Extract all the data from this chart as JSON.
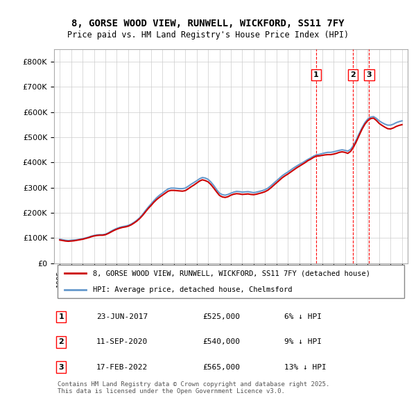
{
  "title": "8, GORSE WOOD VIEW, RUNWELL, WICKFORD, SS11 7FY",
  "subtitle": "Price paid vs. HM Land Registry's House Price Index (HPI)",
  "legend_label_red": "8, GORSE WOOD VIEW, RUNWELL, WICKFORD, SS11 7FY (detached house)",
  "legend_label_blue": "HPI: Average price, detached house, Chelmsford",
  "transactions": [
    {
      "num": 1,
      "date": "23-JUN-2017",
      "price": 525000,
      "pct": "6%",
      "dir": "↓",
      "x_year": 2017.48
    },
    {
      "num": 2,
      "date": "11-SEP-2020",
      "price": 540000,
      "pct": "9%",
      "dir": "↓",
      "x_year": 2020.7
    },
    {
      "num": 3,
      "date": "17-FEB-2022",
      "price": 565000,
      "pct": "13%",
      "dir": "↓",
      "x_year": 2022.12
    }
  ],
  "footer": "Contains HM Land Registry data © Crown copyright and database right 2025.\nThis data is licensed under the Open Government Licence v3.0.",
  "ylim": [
    0,
    850000
  ],
  "xlim": [
    1994.5,
    2025.5
  ],
  "yticks": [
    0,
    100000,
    200000,
    300000,
    400000,
    500000,
    600000,
    700000,
    800000
  ],
  "ytick_labels": [
    "£0",
    "£100K",
    "£200K",
    "£300K",
    "£400K",
    "£500K",
    "£600K",
    "£700K",
    "£800K"
  ],
  "color_red": "#cc0000",
  "color_blue": "#6699cc",
  "color_grid": "#cccccc",
  "bg_color": "#ffffff",
  "hpi_data": {
    "years": [
      1995.0,
      1995.25,
      1995.5,
      1995.75,
      1996.0,
      1996.25,
      1996.5,
      1996.75,
      1997.0,
      1997.25,
      1997.5,
      1997.75,
      1998.0,
      1998.25,
      1998.5,
      1998.75,
      1999.0,
      1999.25,
      1999.5,
      1999.75,
      2000.0,
      2000.25,
      2000.5,
      2000.75,
      2001.0,
      2001.25,
      2001.5,
      2001.75,
      2002.0,
      2002.25,
      2002.5,
      2002.75,
      2003.0,
      2003.25,
      2003.5,
      2003.75,
      2004.0,
      2004.25,
      2004.5,
      2004.75,
      2005.0,
      2005.25,
      2005.5,
      2005.75,
      2006.0,
      2006.25,
      2006.5,
      2006.75,
      2007.0,
      2007.25,
      2007.5,
      2007.75,
      2008.0,
      2008.25,
      2008.5,
      2008.75,
      2009.0,
      2009.25,
      2009.5,
      2009.75,
      2010.0,
      2010.25,
      2010.5,
      2010.75,
      2011.0,
      2011.25,
      2011.5,
      2011.75,
      2012.0,
      2012.25,
      2012.5,
      2012.75,
      2013.0,
      2013.25,
      2013.5,
      2013.75,
      2014.0,
      2014.25,
      2014.5,
      2014.75,
      2015.0,
      2015.25,
      2015.5,
      2015.75,
      2016.0,
      2016.25,
      2016.5,
      2016.75,
      2017.0,
      2017.25,
      2017.5,
      2017.75,
      2018.0,
      2018.25,
      2018.5,
      2018.75,
      2019.0,
      2019.25,
      2019.5,
      2019.75,
      2020.0,
      2020.25,
      2020.5,
      2020.75,
      2021.0,
      2021.25,
      2021.5,
      2021.75,
      2022.0,
      2022.25,
      2022.5,
      2022.75,
      2023.0,
      2023.25,
      2023.5,
      2023.75,
      2024.0,
      2024.25,
      2024.5,
      2024.75,
      2025.0
    ],
    "values": [
      95000,
      93000,
      91000,
      90000,
      91000,
      92000,
      93000,
      95000,
      97000,
      100000,
      103000,
      107000,
      110000,
      112000,
      113000,
      113000,
      115000,
      120000,
      127000,
      133000,
      138000,
      142000,
      145000,
      147000,
      150000,
      155000,
      162000,
      170000,
      180000,
      193000,
      208000,
      222000,
      235000,
      248000,
      260000,
      270000,
      278000,
      287000,
      295000,
      298000,
      298000,
      297000,
      296000,
      296000,
      298000,
      305000,
      313000,
      320000,
      327000,
      335000,
      340000,
      338000,
      333000,
      322000,
      308000,
      292000,
      278000,
      272000,
      270000,
      273000,
      278000,
      282000,
      285000,
      284000,
      282000,
      283000,
      284000,
      282000,
      280000,
      282000,
      285000,
      288000,
      292000,
      298000,
      307000,
      317000,
      327000,
      337000,
      347000,
      355000,
      362000,
      370000,
      378000,
      385000,
      392000,
      398000,
      405000,
      412000,
      418000,
      425000,
      430000,
      432000,
      435000,
      438000,
      440000,
      440000,
      442000,
      445000,
      448000,
      450000,
      448000,
      445000,
      452000,
      468000,
      490000,
      515000,
      538000,
      558000,
      572000,
      580000,
      582000,
      575000,
      565000,
      558000,
      552000,
      548000,
      548000,
      552000,
      558000,
      562000,
      565000
    ]
  },
  "price_data": {
    "years": [
      1995.0,
      1995.25,
      1995.5,
      1995.75,
      1996.0,
      1996.25,
      1996.5,
      1996.75,
      1997.0,
      1997.25,
      1997.5,
      1997.75,
      1998.0,
      1998.25,
      1998.5,
      1998.75,
      1999.0,
      1999.25,
      1999.5,
      1999.75,
      2000.0,
      2000.25,
      2000.5,
      2000.75,
      2001.0,
      2001.25,
      2001.5,
      2001.75,
      2002.0,
      2002.25,
      2002.5,
      2002.75,
      2003.0,
      2003.25,
      2003.5,
      2003.75,
      2004.0,
      2004.25,
      2004.5,
      2004.75,
      2005.0,
      2005.25,
      2005.5,
      2005.75,
      2006.0,
      2006.25,
      2006.5,
      2006.75,
      2007.0,
      2007.25,
      2007.5,
      2007.75,
      2008.0,
      2008.25,
      2008.5,
      2008.75,
      2009.0,
      2009.25,
      2009.5,
      2009.75,
      2010.0,
      2010.25,
      2010.5,
      2010.75,
      2011.0,
      2011.25,
      2011.5,
      2011.75,
      2012.0,
      2012.25,
      2012.5,
      2012.75,
      2013.0,
      2013.25,
      2013.5,
      2013.75,
      2014.0,
      2014.25,
      2014.5,
      2014.75,
      2015.0,
      2015.25,
      2015.5,
      2015.75,
      2016.0,
      2016.25,
      2016.5,
      2016.75,
      2017.0,
      2017.25,
      2017.5,
      2017.75,
      2018.0,
      2018.25,
      2018.5,
      2018.75,
      2019.0,
      2019.25,
      2019.5,
      2019.75,
      2020.0,
      2020.25,
      2020.5,
      2020.75,
      2021.0,
      2021.25,
      2021.5,
      2021.75,
      2022.0,
      2022.25,
      2022.5,
      2022.75,
      2023.0,
      2023.25,
      2023.5,
      2023.75,
      2024.0,
      2024.25,
      2024.5,
      2024.75,
      2025.0
    ],
    "values": [
      92000,
      90000,
      88000,
      87000,
      88000,
      89000,
      91000,
      93000,
      95000,
      98000,
      101000,
      105000,
      108000,
      110000,
      111000,
      111000,
      113000,
      118000,
      124000,
      130000,
      135000,
      139000,
      142000,
      144000,
      147000,
      152000,
      159000,
      167000,
      177000,
      189000,
      203000,
      217000,
      229000,
      242000,
      253000,
      262000,
      270000,
      278000,
      286000,
      289000,
      289000,
      288000,
      287000,
      286000,
      288000,
      295000,
      303000,
      310000,
      318000,
      326000,
      331000,
      328000,
      323000,
      312000,
      298000,
      283000,
      269000,
      263000,
      261000,
      264000,
      270000,
      274000,
      276000,
      275000,
      273000,
      274000,
      275000,
      273000,
      272000,
      274000,
      277000,
      280000,
      284000,
      290000,
      299000,
      309000,
      319000,
      329000,
      339000,
      347000,
      354000,
      362000,
      370000,
      378000,
      385000,
      392000,
      399000,
      407000,
      413000,
      420000,
      425000,
      426000,
      428000,
      430000,
      431000,
      431000,
      433000,
      436000,
      440000,
      442000,
      440000,
      436000,
      444000,
      461000,
      483000,
      508000,
      532000,
      552000,
      566000,
      574000,
      576000,
      567000,
      555000,
      547000,
      540000,
      534000,
      533000,
      537000,
      543000,
      547000,
      550000
    ]
  }
}
